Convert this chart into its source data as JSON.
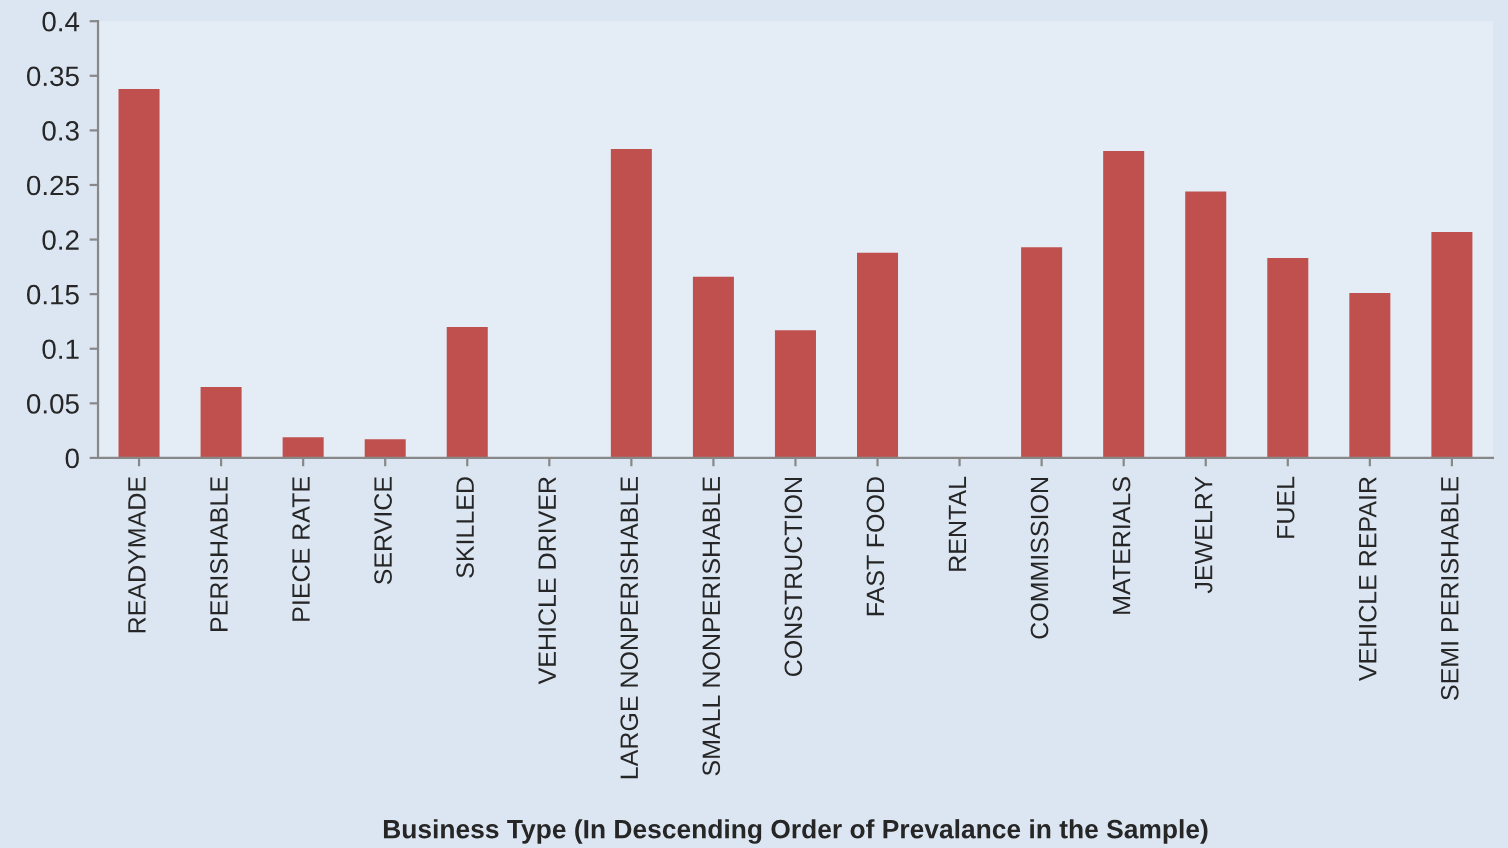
{
  "chart_data": {
    "type": "bar",
    "xlabel": "Business Type (In Descending Order of Prevalance in the Sample)",
    "categories": [
      "READYMADE",
      "PERISHABLE",
      "PIECE RATE",
      "SERVICE",
      "SKILLED",
      "VEHICLE DRIVER",
      "LARGE NONPERISHABLE",
      "SMALL NONPERISHABLE",
      "CONSTRUCTION",
      "FAST FOOD",
      "RENTAL",
      "COMMISSION",
      "MATERIALS",
      "JEWELRY",
      "FUEL",
      "VEHICLE REPAIR",
      "SEMI PERISHABLE"
    ],
    "values": [
      0.338,
      0.065,
      0.019,
      0.017,
      0.12,
      0,
      0.283,
      0.166,
      0.117,
      0.188,
      0,
      0.193,
      0.281,
      0.244,
      0.183,
      0.151,
      0.207
    ],
    "color": "#c0504d",
    "ylim": [
      0,
      0.4
    ],
    "yticks": [
      {
        "value": 0,
        "label": "0"
      },
      {
        "value": 0.05,
        "label": "0.05"
      },
      {
        "value": 0.1,
        "label": "0.1"
      },
      {
        "value": 0.15,
        "label": "0.15"
      },
      {
        "value": 0.2,
        "label": "0.2"
      },
      {
        "value": 0.25,
        "label": "0.25"
      },
      {
        "value": 0.3,
        "label": "0.3"
      },
      {
        "value": 0.35,
        "label": "0.35"
      },
      {
        "value": 0.4,
        "label": "0.4"
      }
    ],
    "grid": false,
    "legend": false
  }
}
